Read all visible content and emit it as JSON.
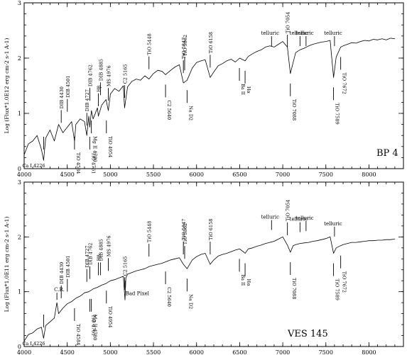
{
  "chart_data": [
    {
      "type": "line",
      "object_label": "BP 4",
      "ylabel": "Log (Flux*1.0E12 erg cm-2 s-1 A-1)",
      "xlim": [
        4000,
        8400
      ],
      "ylim": [
        0,
        3
      ],
      "x_ticks": [
        4000,
        4500,
        5000,
        5500,
        6000,
        6500,
        7000,
        7500,
        8000
      ],
      "y_ticks": [
        0,
        1,
        2,
        3
      ],
      "series": [
        {
          "x": [
            4000,
            4050,
            4100,
            4150,
            4200,
            4226,
            4250,
            4300,
            4350,
            4400,
            4450,
            4500,
            4550,
            4584,
            4600,
            4650,
            4700,
            4727,
            4750,
            4761,
            4780,
            4800,
            4850,
            4861,
            4880,
            4900,
            4950,
            4976,
            5000,
            5050,
            5100,
            5150,
            5165,
            5200,
            5250,
            5300,
            5350,
            5400,
            5448,
            5500,
            5550,
            5600,
            5640,
            5700,
            5750,
            5800,
            5847,
            5890,
            5950,
            6000,
            6050,
            6100,
            6158,
            6200,
            6250,
            6300,
            6350,
            6400,
            6450,
            6500,
            6563,
            6600,
            6650,
            6700,
            6750,
            6800,
            6850,
            6900,
            6950,
            7000,
            7054,
            7088,
            7120,
            7150,
            7200,
            7250,
            7300,
            7350,
            7400,
            7450,
            7500,
            7550,
            7589,
            7620,
            7672,
            7700,
            7750,
            7800,
            7850,
            7900,
            7950,
            8000,
            8050,
            8100,
            8150,
            8200,
            8250,
            8300
          ],
          "y": [
            0.25,
            0.45,
            0.5,
            0.6,
            0.35,
            0.15,
            0.55,
            0.7,
            0.5,
            0.8,
            0.65,
            0.75,
            0.85,
            0.5,
            0.8,
            0.9,
            0.85,
            0.6,
            0.95,
            0.75,
            1.05,
            0.9,
            1.1,
            0.95,
            1.05,
            1.15,
            1.25,
            1.05,
            1.35,
            1.45,
            1.4,
            1.5,
            1.1,
            1.48,
            1.58,
            1.62,
            1.6,
            1.68,
            1.62,
            1.72,
            1.78,
            1.76,
            1.7,
            1.78,
            1.84,
            1.88,
            1.55,
            1.6,
            1.82,
            1.92,
            1.95,
            1.97,
            1.65,
            1.75,
            1.86,
            1.9,
            1.95,
            1.98,
            1.93,
            2.0,
            1.95,
            2.03,
            2.08,
            2.12,
            2.15,
            2.2,
            2.22,
            2.2,
            2.25,
            2.3,
            2.2,
            1.72,
            1.92,
            2.1,
            2.15,
            2.18,
            2.22,
            2.25,
            2.27,
            2.29,
            2.3,
            2.32,
            1.65,
            2.02,
            2.2,
            2.22,
            2.25,
            2.28,
            2.27,
            2.3,
            2.32,
            2.31,
            2.34,
            2.33,
            2.35,
            2.33,
            2.36,
            2.35
          ]
        }
      ],
      "features_top": [
        {
          "label": "DIB 4430",
          "x": 4430
        },
        {
          "label": "DIB 4501",
          "x": 4501
        },
        {
          "label": "DIB 4727",
          "x": 4727
        },
        {
          "label": "DIB 4762",
          "x": 4762
        },
        {
          "label": "Hβ",
          "x": 4861
        },
        {
          "label": "DIB 4885",
          "x": 4885
        },
        {
          "label": "MS 4976",
          "x": 4976
        },
        {
          "label": "C2 5165",
          "x": 5165
        },
        {
          "label": "TiO 5448",
          "x": 5448
        },
        {
          "label": "TiO 5847",
          "x": 5847
        },
        {
          "label": "TiO 5862",
          "x": 5862
        },
        {
          "label": "TiO 6158",
          "x": 6158
        },
        {
          "label": "telluric",
          "x": 6870
        },
        {
          "label": "TiO 7054",
          "x": 7054
        },
        {
          "label": "telluric",
          "x": 7200
        },
        {
          "label": "telluric",
          "x": 7270
        },
        {
          "label": "telluric",
          "x": 7600
        }
      ],
      "features_bottom": [
        {
          "label": "Ca I 4226",
          "x": 4226
        },
        {
          "label": "TiO 4584",
          "x": 4584
        },
        {
          "label": "Mg II 4780",
          "x": 4780
        },
        {
          "label": "TiO 4761",
          "x": 4761
        },
        {
          "label": "TiO 4954",
          "x": 4954
        },
        {
          "label": "C2 5640",
          "x": 5640
        },
        {
          "label": "Na D2",
          "x": 5890
        },
        {
          "label": "Hα",
          "x": 6563
        },
        {
          "label": "Ba II",
          "x": 6497
        },
        {
          "label": "TiO 7088",
          "x": 7088
        },
        {
          "label": "TiO 7589",
          "x": 7589
        },
        {
          "label": "TiO 7672",
          "x": 7672
        }
      ]
    },
    {
      "type": "line",
      "object_label": "VES 145",
      "ylabel": "Log (Flux*1.0E11 erg cm-2 s-1 A-1)",
      "xlim": [
        4000,
        8400
      ],
      "ylim": [
        0,
        3
      ],
      "x_ticks": [
        4000,
        4500,
        5000,
        5500,
        6000,
        6500,
        7000,
        7500,
        8000
      ],
      "y_ticks": [
        0,
        1,
        2,
        3
      ],
      "series": [
        {
          "x": [
            4000,
            4050,
            4100,
            4150,
            4200,
            4226,
            4250,
            4300,
            4350,
            4380,
            4400,
            4450,
            4500,
            4550,
            4600,
            4650,
            4700,
            4750,
            4800,
            4850,
            4900,
            4950,
            5000,
            5050,
            5100,
            5150,
            5170,
            5180,
            5200,
            5250,
            5300,
            5350,
            5400,
            5450,
            5500,
            5550,
            5600,
            5650,
            5700,
            5750,
            5800,
            5847,
            5890,
            5950,
            6000,
            6050,
            6100,
            6158,
            6200,
            6250,
            6300,
            6350,
            6400,
            6450,
            6500,
            6550,
            6563,
            6600,
            6650,
            6700,
            6750,
            6800,
            6850,
            6900,
            6950,
            7000,
            7054,
            7088,
            7120,
            7150,
            7200,
            7250,
            7300,
            7350,
            7400,
            7450,
            7500,
            7550,
            7589,
            7620,
            7672,
            7700,
            7750,
            7800,
            7850,
            7900,
            7950,
            8000,
            8050,
            8100,
            8150,
            8200,
            8250,
            8300
          ],
          "y": [
            0.1,
            0.22,
            0.25,
            0.32,
            0.35,
            0.15,
            0.38,
            0.45,
            0.52,
            0.8,
            0.6,
            0.7,
            0.78,
            0.82,
            0.88,
            0.92,
            0.98,
            1.0,
            1.05,
            1.08,
            1.12,
            1.15,
            1.2,
            1.22,
            1.25,
            1.28,
            0.85,
            1.25,
            1.32,
            1.35,
            1.38,
            1.4,
            1.42,
            1.46,
            1.48,
            1.5,
            1.52,
            1.55,
            1.58,
            1.6,
            1.62,
            1.5,
            1.42,
            1.58,
            1.64,
            1.68,
            1.7,
            1.5,
            1.58,
            1.65,
            1.68,
            1.7,
            1.73,
            1.76,
            1.78,
            1.72,
            1.7,
            1.78,
            1.8,
            1.83,
            1.85,
            1.88,
            1.9,
            1.92,
            1.96,
            2.0,
            1.85,
            1.72,
            1.84,
            1.86,
            1.88,
            1.89,
            1.9,
            1.92,
            1.93,
            1.95,
            1.97,
            2.0,
            1.7,
            1.8,
            1.84,
            1.86,
            1.88,
            1.9,
            1.9,
            1.91,
            1.92,
            1.93,
            1.93,
            1.94,
            1.94,
            1.95,
            1.95,
            1.96
          ]
        }
      ],
      "annotations": [
        {
          "label": "C.R.",
          "x": 4380
        },
        {
          "label": "Bad Pixel",
          "x": 5175
        }
      ],
      "features_top": [
        {
          "label": "DIB 4430",
          "x": 4430
        },
        {
          "label": "DIB 4501",
          "x": 4501
        },
        {
          "label": "DIB 4727",
          "x": 4727
        },
        {
          "label": "DIB 4762",
          "x": 4762
        },
        {
          "label": "Hβ",
          "x": 4861
        },
        {
          "label": "DIB 4885",
          "x": 4885
        },
        {
          "label": "MS 4976",
          "x": 4976
        },
        {
          "label": "C2 5165",
          "x": 5165
        },
        {
          "label": "TiO 5448",
          "x": 5448
        },
        {
          "label": "TiO 5847",
          "x": 5847
        },
        {
          "label": "TiO 5862",
          "x": 5862
        },
        {
          "label": "TiO 6158",
          "x": 6158
        },
        {
          "label": "telluric",
          "x": 6870
        },
        {
          "label": "TiO 7054",
          "x": 7054
        },
        {
          "label": "telluric",
          "x": 7200
        },
        {
          "label": "telluric",
          "x": 7270
        },
        {
          "label": "telluric",
          "x": 7600
        }
      ],
      "features_bottom": [
        {
          "label": "Ca I 4226",
          "x": 4226
        },
        {
          "label": "TiO 4584",
          "x": 4584
        },
        {
          "label": "Mg II 4780",
          "x": 4780
        },
        {
          "label": "TiO 4761",
          "x": 4761
        },
        {
          "label": "TiO 4954",
          "x": 4954
        },
        {
          "label": "C2 5640",
          "x": 5640
        },
        {
          "label": "Na D2",
          "x": 5890
        },
        {
          "label": "Hα",
          "x": 6563
        },
        {
          "label": "Ba II",
          "x": 6497
        },
        {
          "label": "TiO 7088",
          "x": 7088
        },
        {
          "label": "TiO 7589",
          "x": 7589
        },
        {
          "label": "TiO 7672",
          "x": 7672
        }
      ]
    }
  ]
}
